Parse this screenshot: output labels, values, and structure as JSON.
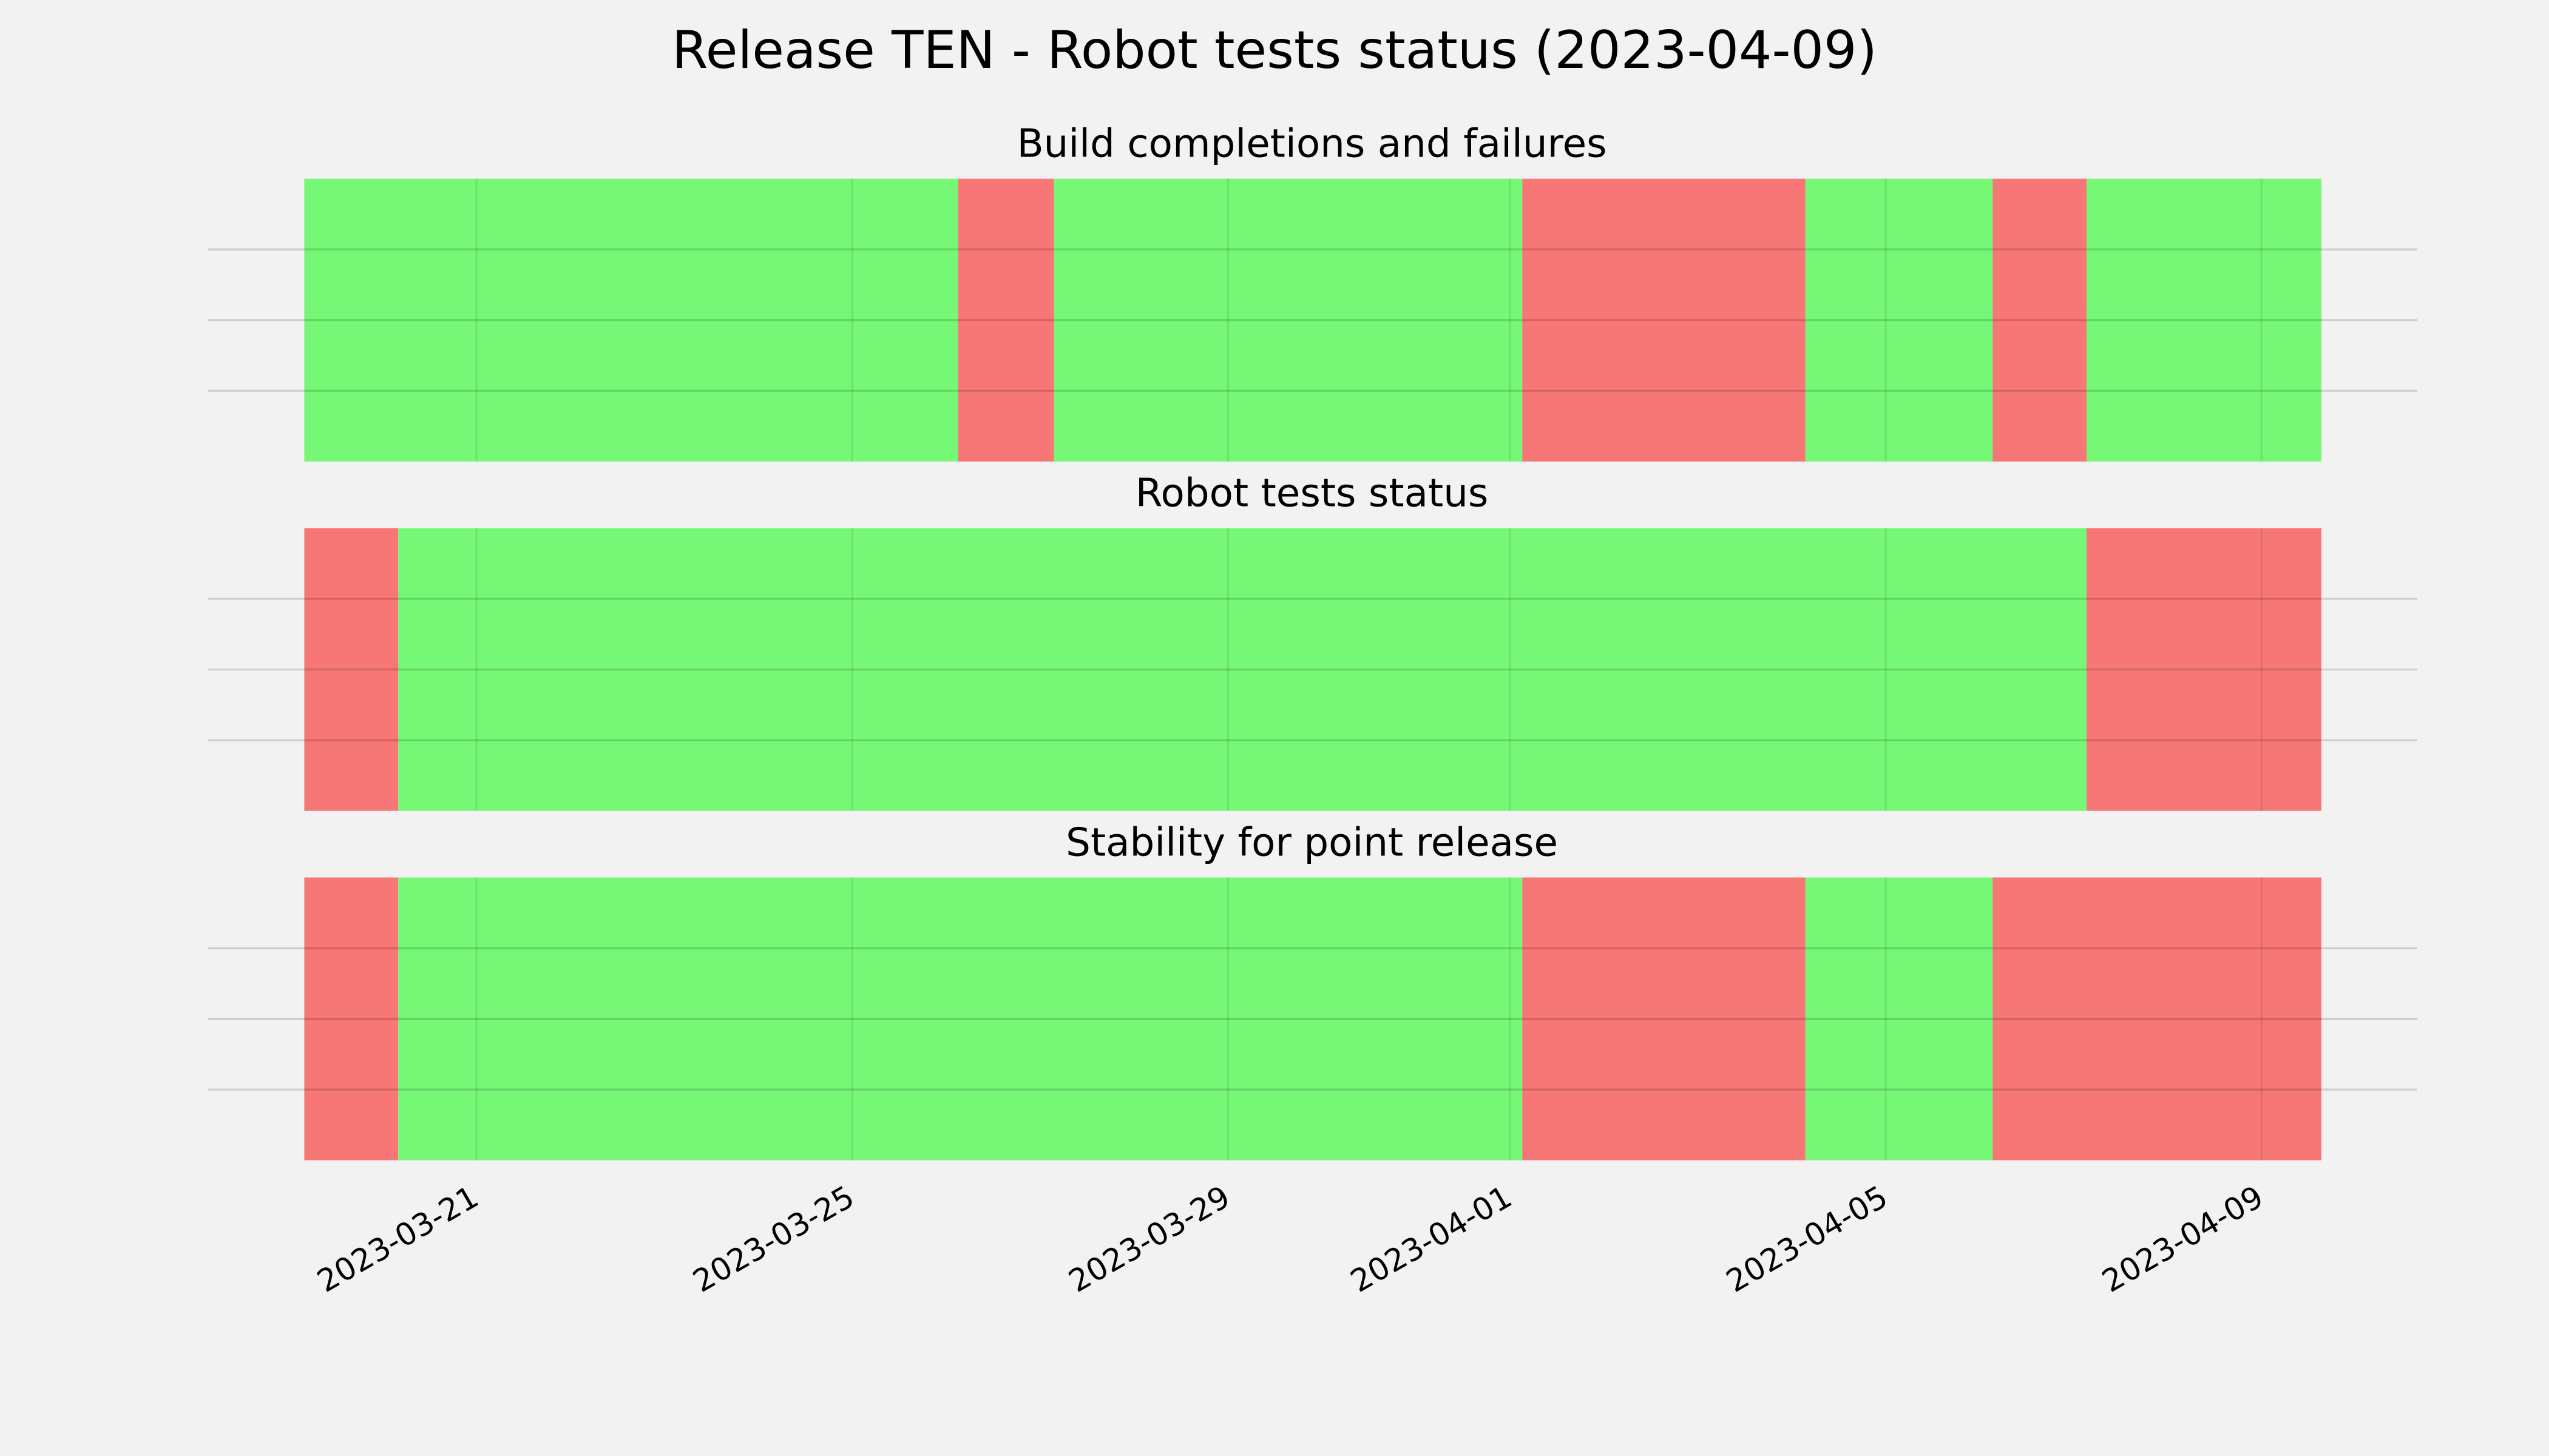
{
  "title": "Release TEN - Robot tests status (2023-04-09)",
  "chart_data": [
    {
      "type": "timeline",
      "title": "Build completions and failures",
      "xlim": [
        "2023-03-18T03:25",
        "2023-04-10T15:50"
      ],
      "xticks": [
        "2023-03-21",
        "2023-03-25",
        "2023-03-29",
        "2023-04-01",
        "2023-04-05",
        "2023-04-09"
      ],
      "ylim": [
        0,
        1
      ],
      "yticks": [
        0.25,
        0.5,
        0.75
      ],
      "grid": true,
      "segments": [
        {
          "start": "2023-03-19T04:00",
          "end": "2023-03-26T03:00",
          "color": "#76f776"
        },
        {
          "start": "2023-03-26T03:00",
          "end": "2023-03-27T03:30",
          "color": "#f77676"
        },
        {
          "start": "2023-03-27T03:30",
          "end": "2023-04-01T03:10",
          "color": "#76f776"
        },
        {
          "start": "2023-04-01T03:10",
          "end": "2023-04-04T03:30",
          "color": "#f77676"
        },
        {
          "start": "2023-04-04T03:30",
          "end": "2023-04-06T03:20",
          "color": "#76f776"
        },
        {
          "start": "2023-04-06T03:20",
          "end": "2023-04-07T03:20",
          "color": "#f77676"
        },
        {
          "start": "2023-04-07T03:20",
          "end": "2023-04-09T15:20",
          "color": "#76f776"
        }
      ]
    },
    {
      "type": "timeline",
      "title": "Robot tests status",
      "xlim": [
        "2023-03-18T03:25",
        "2023-04-10T15:50"
      ],
      "xticks": [
        "2023-03-21",
        "2023-03-25",
        "2023-03-29",
        "2023-04-01",
        "2023-04-05",
        "2023-04-09"
      ],
      "ylim": [
        0,
        1
      ],
      "yticks": [
        0.25,
        0.5,
        0.75
      ],
      "grid": true,
      "segments": [
        {
          "start": "2023-03-19T04:00",
          "end": "2023-03-20T04:00",
          "color": "#f77676"
        },
        {
          "start": "2023-03-20T04:00",
          "end": "2023-04-07T03:20",
          "color": "#76f776"
        },
        {
          "start": "2023-04-07T03:20",
          "end": "2023-04-09T15:20",
          "color": "#f77676"
        }
      ]
    },
    {
      "type": "timeline",
      "title": "Stability for point release",
      "xlim": [
        "2023-03-18T03:25",
        "2023-04-10T15:50"
      ],
      "xticks": [
        "2023-03-21",
        "2023-03-25",
        "2023-03-29",
        "2023-04-01",
        "2023-04-05",
        "2023-04-09"
      ],
      "ylim": [
        0,
        1
      ],
      "yticks": [
        0.25,
        0.5,
        0.75
      ],
      "grid": true,
      "segments": [
        {
          "start": "2023-03-19T04:00",
          "end": "2023-03-20T04:00",
          "color": "#f77676"
        },
        {
          "start": "2023-03-20T04:00",
          "end": "2023-04-01T03:10",
          "color": "#76f776"
        },
        {
          "start": "2023-04-01T03:10",
          "end": "2023-04-04T03:30",
          "color": "#f77676"
        },
        {
          "start": "2023-04-04T03:30",
          "end": "2023-04-06T03:20",
          "color": "#76f776"
        },
        {
          "start": "2023-04-06T03:20",
          "end": "2023-04-09T15:20",
          "color": "#f77676"
        }
      ]
    }
  ]
}
